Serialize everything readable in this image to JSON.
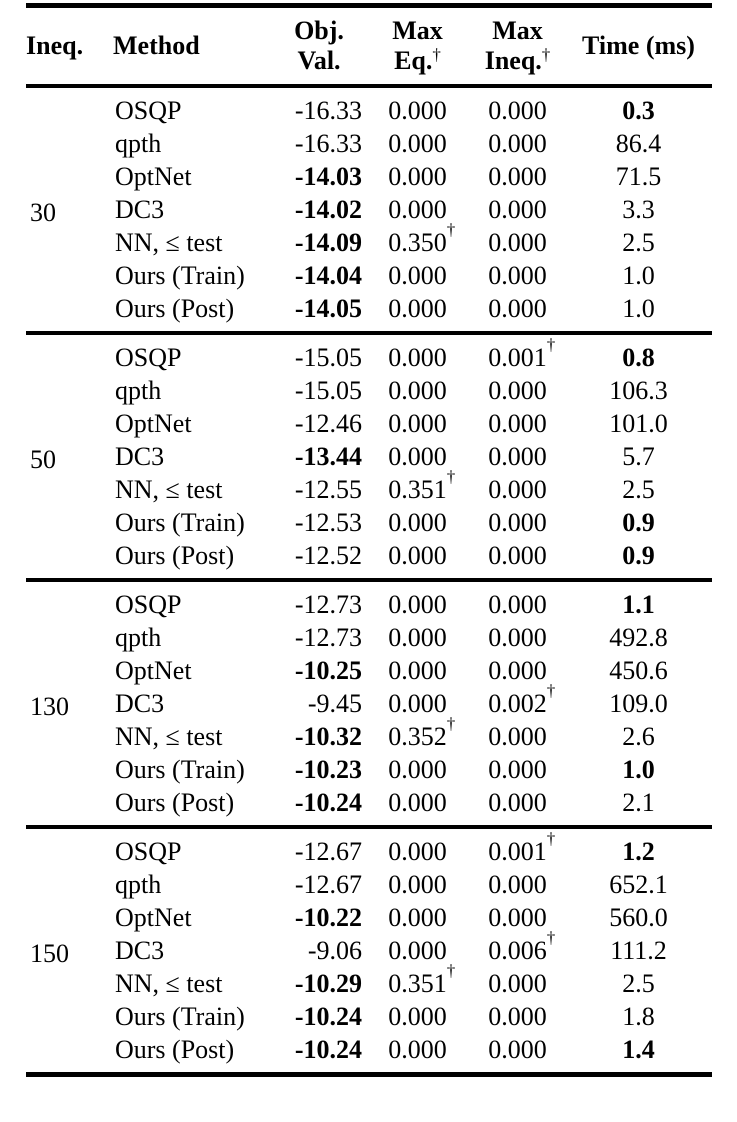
{
  "colors": {
    "text": "#000000",
    "background": "#ffffff",
    "rule": "#000000"
  },
  "table": {
    "headers": {
      "ineq": "Ineq.",
      "method": "Method",
      "obj": {
        "line1": "Obj.",
        "line2": "Val."
      },
      "max_eq": {
        "line1": "Max",
        "line2": "Eq.",
        "sup": "†"
      },
      "max_ineq": {
        "line1": "Max",
        "line2": "Ineq.",
        "sup": "†"
      },
      "time": "Time (ms)"
    },
    "groups": [
      {
        "ineq": "30",
        "rows": [
          {
            "method": "OSQP",
            "obj": {
              "v": "-16.33",
              "bold": false
            },
            "max_eq": {
              "v": "0.000",
              "sup": ""
            },
            "max_ineq": {
              "v": "0.000",
              "sup": ""
            },
            "time": {
              "v": "0.3",
              "bold": true
            }
          },
          {
            "method": "qpth",
            "obj": {
              "v": "-16.33",
              "bold": false
            },
            "max_eq": {
              "v": "0.000",
              "sup": ""
            },
            "max_ineq": {
              "v": "0.000",
              "sup": ""
            },
            "time": {
              "v": "86.4",
              "bold": false
            }
          },
          {
            "method": "OptNet",
            "obj": {
              "v": "-14.03",
              "bold": true
            },
            "max_eq": {
              "v": "0.000",
              "sup": ""
            },
            "max_ineq": {
              "v": "0.000",
              "sup": ""
            },
            "time": {
              "v": "71.5",
              "bold": false
            }
          },
          {
            "method": "DC3",
            "obj": {
              "v": "-14.02",
              "bold": true
            },
            "max_eq": {
              "v": "0.000",
              "sup": ""
            },
            "max_ineq": {
              "v": "0.000",
              "sup": ""
            },
            "time": {
              "v": "3.3",
              "bold": false
            }
          },
          {
            "method": "NN, ≤ test",
            "obj": {
              "v": "-14.09",
              "bold": true
            },
            "max_eq": {
              "v": "0.350",
              "sup": "†"
            },
            "max_ineq": {
              "v": "0.000",
              "sup": ""
            },
            "time": {
              "v": "2.5",
              "bold": false
            }
          },
          {
            "method": "Ours (Train)",
            "obj": {
              "v": "-14.04",
              "bold": true
            },
            "max_eq": {
              "v": "0.000",
              "sup": ""
            },
            "max_ineq": {
              "v": "0.000",
              "sup": ""
            },
            "time": {
              "v": "1.0",
              "bold": false
            }
          },
          {
            "method": "Ours (Post)",
            "obj": {
              "v": "-14.05",
              "bold": true
            },
            "max_eq": {
              "v": "0.000",
              "sup": ""
            },
            "max_ineq": {
              "v": "0.000",
              "sup": ""
            },
            "time": {
              "v": "1.0",
              "bold": false
            }
          }
        ]
      },
      {
        "ineq": "50",
        "rows": [
          {
            "method": "OSQP",
            "obj": {
              "v": "-15.05",
              "bold": false
            },
            "max_eq": {
              "v": "0.000",
              "sup": ""
            },
            "max_ineq": {
              "v": "0.001",
              "sup": "†"
            },
            "time": {
              "v": "0.8",
              "bold": true
            }
          },
          {
            "method": "qpth",
            "obj": {
              "v": "-15.05",
              "bold": false
            },
            "max_eq": {
              "v": "0.000",
              "sup": ""
            },
            "max_ineq": {
              "v": "0.000",
              "sup": ""
            },
            "time": {
              "v": "106.3",
              "bold": false
            }
          },
          {
            "method": "OptNet",
            "obj": {
              "v": "-12.46",
              "bold": false
            },
            "max_eq": {
              "v": "0.000",
              "sup": ""
            },
            "max_ineq": {
              "v": "0.000",
              "sup": ""
            },
            "time": {
              "v": "101.0",
              "bold": false
            }
          },
          {
            "method": "DC3",
            "obj": {
              "v": "-13.44",
              "bold": true
            },
            "max_eq": {
              "v": "0.000",
              "sup": ""
            },
            "max_ineq": {
              "v": "0.000",
              "sup": ""
            },
            "time": {
              "v": "5.7",
              "bold": false
            }
          },
          {
            "method": "NN, ≤ test",
            "obj": {
              "v": "-12.55",
              "bold": false
            },
            "max_eq": {
              "v": "0.351",
              "sup": "†"
            },
            "max_ineq": {
              "v": "0.000",
              "sup": ""
            },
            "time": {
              "v": "2.5",
              "bold": false
            }
          },
          {
            "method": "Ours (Train)",
            "obj": {
              "v": "-12.53",
              "bold": false
            },
            "max_eq": {
              "v": "0.000",
              "sup": ""
            },
            "max_ineq": {
              "v": "0.000",
              "sup": ""
            },
            "time": {
              "v": "0.9",
              "bold": true
            }
          },
          {
            "method": "Ours (Post)",
            "obj": {
              "v": "-12.52",
              "bold": false
            },
            "max_eq": {
              "v": "0.000",
              "sup": ""
            },
            "max_ineq": {
              "v": "0.000",
              "sup": ""
            },
            "time": {
              "v": "0.9",
              "bold": true
            }
          }
        ]
      },
      {
        "ineq": "130",
        "rows": [
          {
            "method": "OSQP",
            "obj": {
              "v": "-12.73",
              "bold": false
            },
            "max_eq": {
              "v": "0.000",
              "sup": ""
            },
            "max_ineq": {
              "v": "0.000",
              "sup": ""
            },
            "time": {
              "v": "1.1",
              "bold": true
            }
          },
          {
            "method": "qpth",
            "obj": {
              "v": "-12.73",
              "bold": false
            },
            "max_eq": {
              "v": "0.000",
              "sup": ""
            },
            "max_ineq": {
              "v": "0.000",
              "sup": ""
            },
            "time": {
              "v": "492.8",
              "bold": false
            }
          },
          {
            "method": "OptNet",
            "obj": {
              "v": "-10.25",
              "bold": true
            },
            "max_eq": {
              "v": "0.000",
              "sup": ""
            },
            "max_ineq": {
              "v": "0.000",
              "sup": ""
            },
            "time": {
              "v": "450.6",
              "bold": false
            }
          },
          {
            "method": "DC3",
            "obj": {
              "v": "-9.45",
              "bold": false
            },
            "max_eq": {
              "v": "0.000",
              "sup": ""
            },
            "max_ineq": {
              "v": "0.002",
              "sup": "†"
            },
            "time": {
              "v": "109.0",
              "bold": false
            }
          },
          {
            "method": "NN, ≤ test",
            "obj": {
              "v": "-10.32",
              "bold": true
            },
            "max_eq": {
              "v": "0.352",
              "sup": "†"
            },
            "max_ineq": {
              "v": "0.000",
              "sup": ""
            },
            "time": {
              "v": "2.6",
              "bold": false
            }
          },
          {
            "method": "Ours (Train)",
            "obj": {
              "v": "-10.23",
              "bold": true
            },
            "max_eq": {
              "v": "0.000",
              "sup": ""
            },
            "max_ineq": {
              "v": "0.000",
              "sup": ""
            },
            "time": {
              "v": "1.0",
              "bold": true
            }
          },
          {
            "method": "Ours (Post)",
            "obj": {
              "v": "-10.24",
              "bold": true
            },
            "max_eq": {
              "v": "0.000",
              "sup": ""
            },
            "max_ineq": {
              "v": "0.000",
              "sup": ""
            },
            "time": {
              "v": "2.1",
              "bold": false
            }
          }
        ]
      },
      {
        "ineq": "150",
        "rows": [
          {
            "method": "OSQP",
            "obj": {
              "v": "-12.67",
              "bold": false
            },
            "max_eq": {
              "v": "0.000",
              "sup": ""
            },
            "max_ineq": {
              "v": "0.001",
              "sup": "†"
            },
            "time": {
              "v": "1.2",
              "bold": true
            }
          },
          {
            "method": "qpth",
            "obj": {
              "v": "-12.67",
              "bold": false
            },
            "max_eq": {
              "v": "0.000",
              "sup": ""
            },
            "max_ineq": {
              "v": "0.000",
              "sup": ""
            },
            "time": {
              "v": "652.1",
              "bold": false
            }
          },
          {
            "method": "OptNet",
            "obj": {
              "v": "-10.22",
              "bold": true
            },
            "max_eq": {
              "v": "0.000",
              "sup": ""
            },
            "max_ineq": {
              "v": "0.000",
              "sup": ""
            },
            "time": {
              "v": "560.0",
              "bold": false
            }
          },
          {
            "method": "DC3",
            "obj": {
              "v": "-9.06",
              "bold": false
            },
            "max_eq": {
              "v": "0.000",
              "sup": ""
            },
            "max_ineq": {
              "v": "0.006",
              "sup": "†"
            },
            "time": {
              "v": "111.2",
              "bold": false
            }
          },
          {
            "method": "NN, ≤ test",
            "obj": {
              "v": "-10.29",
              "bold": true
            },
            "max_eq": {
              "v": "0.351",
              "sup": "†"
            },
            "max_ineq": {
              "v": "0.000",
              "sup": ""
            },
            "time": {
              "v": "2.5",
              "bold": false
            }
          },
          {
            "method": "Ours (Train)",
            "obj": {
              "v": "-10.24",
              "bold": true
            },
            "max_eq": {
              "v": "0.000",
              "sup": ""
            },
            "max_ineq": {
              "v": "0.000",
              "sup": ""
            },
            "time": {
              "v": "1.8",
              "bold": false
            }
          },
          {
            "method": "Ours (Post)",
            "obj": {
              "v": "-10.24",
              "bold": true
            },
            "max_eq": {
              "v": "0.000",
              "sup": ""
            },
            "max_ineq": {
              "v": "0.000",
              "sup": ""
            },
            "time": {
              "v": "1.4",
              "bold": true
            }
          }
        ]
      }
    ]
  }
}
